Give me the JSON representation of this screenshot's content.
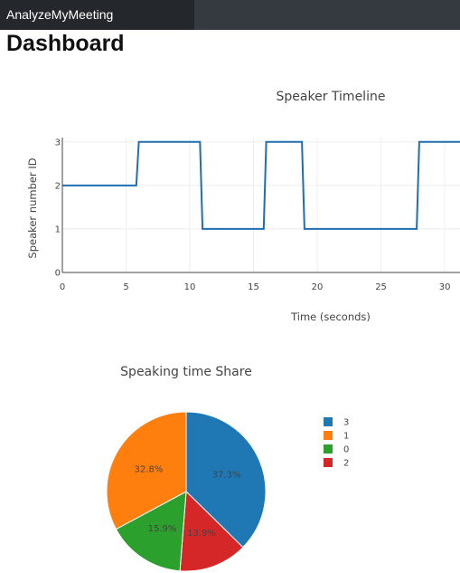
{
  "app": {
    "brand": "AnalyzeMyMeeting"
  },
  "page": {
    "title": "Dashboard"
  },
  "colors": {
    "navbar": "#353a40",
    "brand_bg": "#24282c"
  },
  "chart_data": [
    {
      "type": "line",
      "title": "Speaker Timeline",
      "xlabel": "Time (seconds)",
      "ylabel": "Speaker number ID",
      "xlim": [
        0,
        31.2
      ],
      "ylim": [
        0,
        3.1
      ],
      "xticks": [
        "0",
        "5",
        "10",
        "15",
        "20",
        "25",
        "30"
      ],
      "yticks": [
        "0",
        "1",
        "2",
        "3"
      ],
      "grid": true,
      "color": "#1f6fb0",
      "series": [
        {
          "x": [
            0,
            5.8,
            6.0,
            10.8,
            11.0,
            15.8,
            16.0,
            18.8,
            19.0,
            27.8,
            28.0,
            31.2
          ],
          "y": [
            2,
            2,
            3,
            3,
            1,
            1,
            3,
            3,
            1,
            1,
            3,
            3
          ]
        }
      ]
    },
    {
      "type": "pie",
      "title": "Speaking time Share",
      "legend_position": "right",
      "slices": [
        {
          "label": "3",
          "value": 37.3,
          "text": "37.3%",
          "color": "#1f77b4"
        },
        {
          "label": "2",
          "value": 13.9,
          "text": "13.9%",
          "color": "#d62728"
        },
        {
          "label": "0",
          "value": 15.9,
          "text": "15.9%",
          "color": "#2ca02c"
        },
        {
          "label": "1",
          "value": 32.8,
          "text": "32.8%",
          "color": "#ff7f0e"
        }
      ],
      "legend_order": [
        "3",
        "1",
        "0",
        "2"
      ]
    }
  ]
}
